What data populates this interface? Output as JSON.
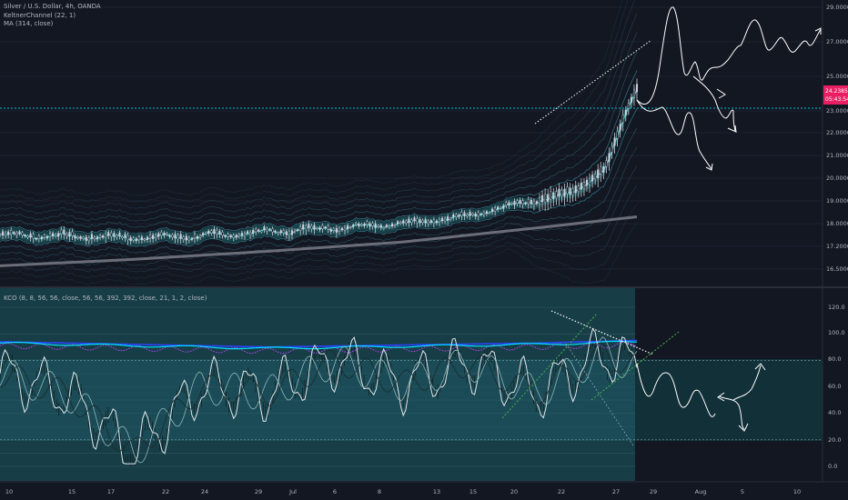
{
  "header": {
    "symbol": "Silver / U.S. Dollar, 4h, OANDA",
    "keltner": "KeltnerChannel (22, 1)",
    "ma": "MA (314, close)"
  },
  "oscillator": {
    "legend": "KCO (8, 8, 56, 56, close, 56, 56, 392, 392, close, 21, 1, 2, close)"
  },
  "colors": {
    "background": "#131722",
    "price_band": "#26a69a",
    "band_fill": "#1e6a6e",
    "candle": "#d1d4dc",
    "ma_line": "#5d606b",
    "hline": "#00bcd4",
    "price_badge": "#e91e63",
    "osc_bg": "#1a4a52",
    "osc_blue": "#1e40ff",
    "osc_cyan": "#00e5ff",
    "osc_magenta": "#c040ff",
    "drawing": "#ffffff",
    "green_dash": "#4caf50"
  },
  "chart_data": [
    {
      "type": "line",
      "panel": "price",
      "title": "Silver / U.S. Dollar, 4h, OANDA",
      "y_ticks": [
        "29.00000",
        "27.00000",
        "25.00000",
        "23.00000",
        "22.00000",
        "21.00000",
        "20.00000",
        "19.00000",
        "18.00000",
        "17.20000",
        "16.50000"
      ],
      "y_tick_values": [
        29.0,
        27.0,
        25.0,
        23.0,
        22.0,
        21.0,
        20.0,
        19.0,
        18.0,
        17.2,
        16.5
      ],
      "price_badge": "24.23850",
      "time_badge": "05:43:54",
      "horizontal_line": 23.4,
      "series": [
        {
          "name": "close",
          "x": [
            0,
            10,
            20,
            30,
            40,
            50,
            60,
            70,
            75,
            80,
            85,
            90,
            95
          ],
          "values": [
            17.6,
            17.55,
            17.5,
            17.55,
            17.7,
            17.85,
            18.0,
            18.3,
            18.7,
            19.0,
            19.3,
            20.3,
            23.0
          ]
        },
        {
          "name": "MA 314",
          "x": [
            0,
            20,
            40,
            60,
            80,
            95
          ],
          "values": [
            16.6,
            16.8,
            17.05,
            17.35,
            17.85,
            18.3
          ]
        }
      ]
    },
    {
      "type": "line",
      "panel": "oscillator",
      "title": "KCO (8, 8, 56, 56, close, 56, 56, 392, 392, close, 21, 1, 2, close)",
      "y_ticks": [
        "120.0",
        "100.0",
        "80.0",
        "60.0",
        "40.0",
        "20.0",
        "0.0"
      ],
      "y_tick_values": [
        120,
        100,
        80,
        60,
        40,
        20,
        0
      ],
      "overbought": 80,
      "oversold": 20,
      "series": [
        {
          "name": "slow",
          "x": [
            0,
            40,
            80,
            95
          ],
          "values": [
            95,
            91,
            94,
            96
          ]
        },
        {
          "name": "fast",
          "x": [
            0,
            10,
            20,
            30,
            40,
            50,
            60,
            70,
            80,
            85,
            90,
            95
          ],
          "values": [
            70,
            55,
            10,
            60,
            55,
            80,
            62,
            78,
            55,
            70,
            85,
            75
          ]
        }
      ]
    }
  ],
  "time_axis": {
    "labels": [
      "10",
      "15",
      "17",
      "22",
      "24",
      "29",
      "Jul",
      "6",
      "8",
      "13",
      "15",
      "20",
      "22",
      "27",
      "29",
      "Aug",
      "5",
      "10"
    ]
  }
}
